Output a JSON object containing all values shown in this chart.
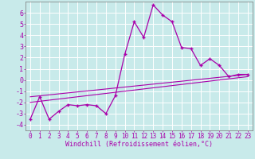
{
  "xlabel": "Windchill (Refroidissement éolien,°C)",
  "xlim": [
    -0.5,
    23.5
  ],
  "ylim": [
    -4.5,
    7.0
  ],
  "yticks": [
    -4,
    -3,
    -2,
    -1,
    0,
    1,
    2,
    3,
    4,
    5,
    6
  ],
  "xticks": [
    0,
    1,
    2,
    3,
    4,
    5,
    6,
    7,
    8,
    9,
    10,
    11,
    12,
    13,
    14,
    15,
    16,
    17,
    18,
    19,
    20,
    21,
    22,
    23
  ],
  "bg_color": "#c8eaea",
  "grid_color": "#ffffff",
  "line_color": "#aa00aa",
  "main_data_x": [
    0,
    1,
    2,
    3,
    4,
    5,
    6,
    7,
    8,
    9,
    10,
    11,
    12,
    13,
    14,
    15,
    16,
    17,
    18,
    19,
    20,
    21,
    22,
    23
  ],
  "main_data_y": [
    -3.5,
    -1.5,
    -3.5,
    -2.8,
    -2.2,
    -2.3,
    -2.2,
    -2.3,
    -3.0,
    -1.4,
    2.3,
    5.2,
    3.8,
    6.7,
    5.8,
    5.2,
    2.9,
    2.8,
    1.3,
    1.9,
    1.3,
    0.3,
    0.5,
    0.5
  ],
  "trend1_x": [
    0,
    23
  ],
  "trend1_y": [
    -1.5,
    0.5
  ],
  "trend2_x": [
    0,
    23
  ],
  "trend2_y": [
    -2.0,
    0.3
  ],
  "tick_fontsize": 5.5,
  "xlabel_fontsize": 6.0
}
